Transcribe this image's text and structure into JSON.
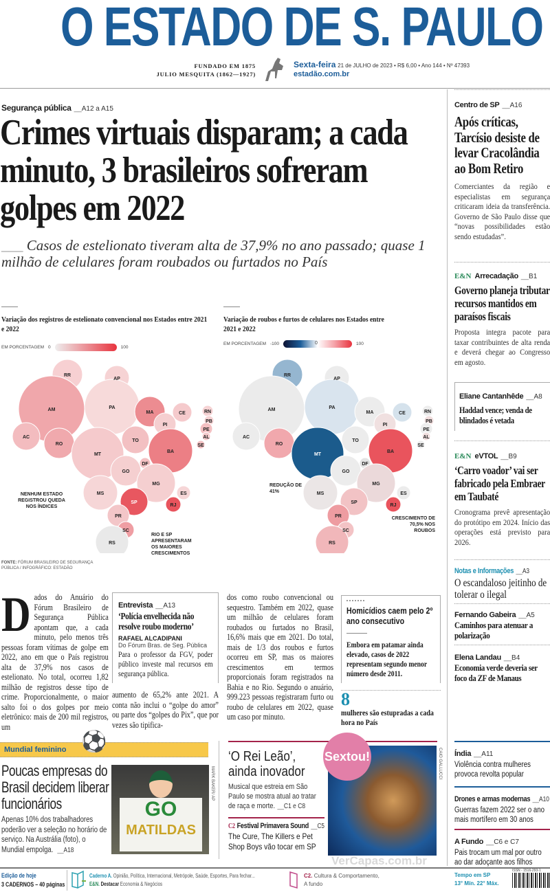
{
  "masthead": {
    "title": "O ESTADO DE S. PAULO",
    "founded": "FUNDADO EM 1875",
    "founder": "JULIO MESQUITA (1862—1927)",
    "day": "Sexta-feira",
    "date_info": "21 de JULHO de 2023 • R$ 6,00 • Ano 144 • Nº 47393",
    "site": "estadão.com.br"
  },
  "lead": {
    "kicker": "Segurança pública",
    "pages": "A12 a A15",
    "headline": "Crimes virtuais disparam; a cada minuto, 3 brasileiros sofreram golpes em 2022",
    "deck": "Casos de estelionato tiveram alta de 37,9% no ano passado; quase 1 milhão de celulares foram roubados ou furtados no País"
  },
  "map1": {
    "title": "Variação dos registros de estelionato convencional nos Estados entre 2021 e 2022",
    "legend_label": "EM PORCENTAGEM",
    "min": "0",
    "max": "100",
    "note_left": "NENHUM ESTADO REGISTROU QUEDA NOS ÍNDICES",
    "note_right": "RIO E SP APRESENTARAM OS MAIORES CRESCIMENTOS",
    "source_bold": "FONTE:",
    "source": "FÓRUM BRASILEIRO DE SEGURANÇA PÚBLICA / INFOGRÁFICO: ESTADÃO",
    "states": [
      [
        "RR",
        "#f7d0d2"
      ],
      [
        "AP",
        "#f6d3d4"
      ],
      [
        "AM",
        "#f0a7ab"
      ],
      [
        "PA",
        "#f7dada"
      ],
      [
        "MA",
        "#ec8c91"
      ],
      [
        "CE",
        "#f5cacc"
      ],
      [
        "RN",
        "#f6d3d4"
      ],
      [
        "PB",
        "#f6d3d4"
      ],
      [
        "PE",
        "#f3c0c2"
      ],
      [
        "PI",
        "#f5cfd0"
      ],
      [
        "AC",
        "#f3bcbf"
      ],
      [
        "RO",
        "#f0a9ad"
      ],
      [
        "TO",
        "#f3c0c2"
      ],
      [
        "AL",
        "#f5cacc"
      ],
      [
        "SE",
        "#f3c0c2"
      ],
      [
        "MT",
        "#f5cacc"
      ],
      [
        "BA",
        "#ec7f85"
      ],
      [
        "DF",
        "#f3c0c2"
      ],
      [
        "GO",
        "#f5cfd0"
      ],
      [
        "MG",
        "#f5cfd0"
      ],
      [
        "MS",
        "#f6d6d7"
      ],
      [
        "ES",
        "#f6d6d7"
      ],
      [
        "SP",
        "#e85760"
      ],
      [
        "RJ",
        "#e8545d"
      ],
      [
        "PR",
        "#f3c6c8"
      ],
      [
        "SC",
        "#ef9ea3"
      ],
      [
        "RS",
        "#e9e9e9"
      ]
    ]
  },
  "map2": {
    "title": "Variação de roubos e furtos de celulares nos Estados entre 2021 e 2022",
    "legend_label": "EM PORCENTAGEM",
    "min": "-100",
    "mid": "0",
    "max": "100",
    "note_left": "REDUÇÃO DE 41%",
    "note_right": "CRESCIMENTO DE 70,5% NOS ROUBOS",
    "states": [
      [
        "RR",
        "#95b6d0"
      ],
      [
        "AP",
        "#ececec"
      ],
      [
        "AM",
        "#ebebeb"
      ],
      [
        "PA",
        "#d9e4ee"
      ],
      [
        "MA",
        "#ececec"
      ],
      [
        "CE",
        "#d5e2ec"
      ],
      [
        "RN",
        "#ededed"
      ],
      [
        "PB",
        "#f1dede"
      ],
      [
        "PE",
        "#ededed"
      ],
      [
        "PI",
        "#f0e0e0"
      ],
      [
        "AC",
        "#ececec"
      ],
      [
        "RO",
        "#f1a8ad"
      ],
      [
        "TO",
        "#ececec"
      ],
      [
        "AL",
        "#f1dede"
      ],
      [
        "SE",
        "#ececec"
      ],
      [
        "MT",
        "#1b5b8c"
      ],
      [
        "BA",
        "#e9545d"
      ],
      [
        "DF",
        "#e3e3e3"
      ],
      [
        "GO",
        "#ececec"
      ],
      [
        "MG",
        "#ebd9da"
      ],
      [
        "MS",
        "#ebe6e6"
      ],
      [
        "ES",
        "#ececec"
      ],
      [
        "SP",
        "#f2c3c5"
      ],
      [
        "RJ",
        "#e9545d"
      ],
      [
        "PR",
        "#ee9ca1"
      ],
      [
        "SC",
        "#f3c3c5"
      ],
      [
        "RS",
        "#f1b7ba"
      ]
    ]
  },
  "body": {
    "dropcap": "D",
    "col1": "ados do Anuário do Fórum Brasileiro de Segurança Pública apontam que, a cada minuto, pelo menos três pessoas foram vítimas de golpe em 2022, ano em que o País registrou alta de 37,9% nos casos de estelionato. No total, ocorreu 1,82 milhão de registros desse tipo de crime. Proporcionalmente, o maior salto foi o dos golpes por meio eletrônico: mais de 200 mil registros, um",
    "col2": "aumento de 65,2% ante 2021. A conta não inclui o “golpe do amor” ou parte dos “golpes do Pix”, que por vezes são tipifica-",
    "col3": "dos como roubo convencional ou sequestro. Também em 2022, quase um milhão de celulares foram roubados ou furtados no Brasil, 16,6% mais que em 2021. Do total, mais de 1/3 dos roubos e furtos ocorreu em SP, mas os maiores crescimentos em termos proporcionais foram registrados na Bahia e no Rio. Segundo o anuário, 999.223 pessoas registraram furto ou roubo de celulares em 2022, quase um caso por minuto."
  },
  "interview": {
    "kicker": "Entrevista",
    "page": "A13",
    "headline": "‘Polícia envelhecida não resolve roubo moderno’",
    "name": "RAFAEL ALCADIPANI",
    "role": "Do Fórum Bras. de Seg. Pública",
    "text": "Para o professor da FGV, poder público investe mal recursos em segurança pública."
  },
  "homicides": {
    "headline": "Homicídios caem pelo 2º ano consecutivo",
    "text": "Embora em patamar ainda elevado, casos de 2022 representam segundo menor número desde 2011.",
    "stat": "8",
    "stat_text": "mulheres são estupradas a cada hora no País"
  },
  "right": [
    {
      "kicker": "Centro de SP",
      "page": "A16",
      "headline": "Após críticas, Tarcísio desiste de levar Cracolândia ao Bom Retiro",
      "text": "Comerciantes da região e especialistas em segurança criticaram ideia da transferência. Governo de São Paulo disse que “novas possibilidades estão sendo estudadas”."
    },
    {
      "brand": "E&N",
      "kicker": "Arrecadação",
      "page": "B1",
      "headline": "Governo planeja tributar recursos mantidos em paraísos fiscais",
      "text": "Proposta integra pacote para taxar contribuintes de alta renda e deverá chegar ao Congresso em agosto."
    },
    {
      "kicker": "Eliane Cantanhêde",
      "page": "A8",
      "headline": "Haddad vence; venda de blindados é vetada"
    },
    {
      "brand": "E&N",
      "kicker": "eVTOL",
      "page": "B9",
      "headline": "‘Carro voador’ vai ser fabricado pela Embraer em Taubaté",
      "text": "Cronograma prevê apresentação do protótipo em 2024. Início das operações está previsto para 2026."
    },
    {
      "kicker": "Notas e Informações",
      "page": "A3",
      "headline": "O escandaloso jeitinho de tolerar o ilegal"
    },
    {
      "kicker": "Fernando Gabeira",
      "page": "A5",
      "headline": "Caminhos para atenuar a polarização"
    },
    {
      "kicker": "Elena Landau",
      "page": "B4",
      "headline": "Economia verde deveria ser foco da ZF de Manaus"
    },
    {
      "kicker": "Índia",
      "page": "A11",
      "headline": "Violência contra mulheres provoca revolta popular"
    },
    {
      "kicker": "Drones e armas modernas",
      "page": "A10",
      "headline": "Guerras fazem 2022 ser o ano mais mortífero em 30 anos"
    },
    {
      "kicker": "A Fundo",
      "page": "C6 e C7",
      "headline": "Pais trocam um mal por outro ao dar adoçante aos filhos"
    }
  ],
  "mundial": {
    "tag": "Mundial feminino",
    "headline": "Poucas empresas do Brasil decidem liberar funcionários",
    "text": "Apenas 10% dos trabalhadores poderão ver a seleção no horário de serviço. Na Austrália (foto), o Mundial empolga.",
    "page": "A18",
    "credit": "MARK BAKER/ AP",
    "sign_1": "GO",
    "sign_2": "MATILDAS"
  },
  "culture": {
    "badge": "Sextou!",
    "headline": "‘O Rei Leão’, ainda inovador",
    "text": "Musical que estreia em São Paulo se mostra atual ao tratar de raça e morte.",
    "page": "C1 e C8",
    "brand": "C2",
    "kicker": "Festival Primavera Sound",
    "page2": "C5",
    "headline2": "The Cure, The Killers e Pet Shop Boys vão tocar em SP",
    "credit": "CAIO GALLUCCI"
  },
  "footer": {
    "edition_label": "Edição de hoje",
    "edition_count": "3 CADERNOS – 40 páginas",
    "cadA_label": "Caderno A.",
    "cadA_text": "Opinião, Política, Internacional, Metrópole, Saúde, Esportes, Para fechar...",
    "en_label": "E&N.",
    "en_bold": "Destacar",
    "en_text": "Economia & Negócios",
    "c2_label": "C2.",
    "c2_text": "Cultura & Comportamento,",
    "c2_text2": "A fundo",
    "weather_label": "Tempo em SP",
    "weather": "13° Mín. 22° Máx.",
    "issn": "ISSN - 1516-293-1",
    "watermark": "VerCapas.com.br"
  },
  "colors": {
    "brand_blue": "#1c5d99",
    "accent_red": "#e8343f",
    "en_green": "#2a8a5a"
  }
}
